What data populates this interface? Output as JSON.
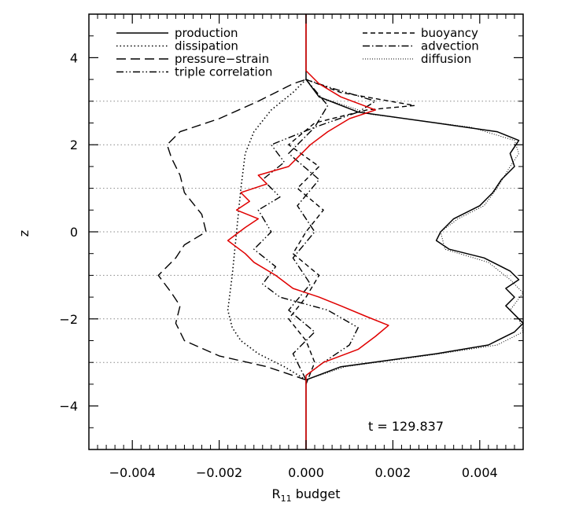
{
  "chart_data": {
    "type": "line",
    "xlabel": "R",
    "xlabel_sub": "11",
    "xlabel_suffix": " budget",
    "ylabel": "z",
    "xlim": [
      -0.005,
      0.005
    ],
    "ylim": [
      -5,
      5
    ],
    "x_ticks": [
      -0.004,
      -0.002,
      0.0,
      0.002,
      0.004
    ],
    "x_tick_labels": [
      "−0.004",
      "−0.002",
      "0.000",
      "0.002",
      "0.004"
    ],
    "y_ticks": [
      -4,
      -2,
      0,
      2,
      4
    ],
    "y_tick_labels": [
      "−4",
      "−2",
      "0",
      "2",
      "4"
    ],
    "reference_lines_z": [
      3,
      2,
      1,
      0,
      -1,
      -2,
      -3
    ],
    "annotation": "t = 129.837",
    "legend": [
      {
        "label": "production",
        "style": "solid",
        "column": "left"
      },
      {
        "label": "dissipation",
        "style": "dotted",
        "column": "left"
      },
      {
        "label": "pressure−strain",
        "style": "longdash",
        "column": "left"
      },
      {
        "label": "triple correlation",
        "style": "dashdotdot",
        "column": "left"
      },
      {
        "label": "buoyancy",
        "style": "dashed",
        "column": "right"
      },
      {
        "label": "advection",
        "style": "dashdot",
        "column": "right"
      },
      {
        "label": "diffusion",
        "style": "thin-dotted",
        "column": "right"
      }
    ],
    "series": [
      {
        "name": "production",
        "style": "solid",
        "color": "#000000",
        "points": [
          [
            0,
            -5
          ],
          [
            0,
            -3.4
          ],
          [
            0.0008,
            -3.1
          ],
          [
            0.003,
            -2.8
          ],
          [
            0.0042,
            -2.6
          ],
          [
            0.0048,
            -2.3
          ],
          [
            0.005,
            -2.1
          ],
          [
            0.0048,
            -1.9
          ],
          [
            0.0046,
            -1.7
          ],
          [
            0.0048,
            -1.5
          ],
          [
            0.0046,
            -1.3
          ],
          [
            0.0049,
            -1.1
          ],
          [
            0.0047,
            -0.9
          ],
          [
            0.0041,
            -0.6
          ],
          [
            0.0033,
            -0.4
          ],
          [
            0.003,
            -0.2
          ],
          [
            0.0031,
            0
          ],
          [
            0.0034,
            0.3
          ],
          [
            0.004,
            0.6
          ],
          [
            0.0043,
            0.9
          ],
          [
            0.0045,
            1.2
          ],
          [
            0.0048,
            1.5
          ],
          [
            0.0047,
            1.8
          ],
          [
            0.0049,
            2.1
          ],
          [
            0.0044,
            2.3
          ],
          [
            0.003,
            2.5
          ],
          [
            0.0012,
            2.75
          ],
          [
            0.0003,
            3.1
          ],
          [
            0,
            3.5
          ],
          [
            0,
            5
          ]
        ]
      },
      {
        "name": "diffusion",
        "style": "thin-dotted",
        "color": "#000000",
        "points": [
          [
            0,
            -5
          ],
          [
            0,
            -3.4
          ],
          [
            0.0009,
            -3.1
          ],
          [
            0.0031,
            -2.8
          ],
          [
            0.0044,
            -2.6
          ],
          [
            0.005,
            -2.3
          ],
          [
            0.0049,
            -2.0
          ],
          [
            0.0047,
            -1.8
          ],
          [
            0.005,
            -1.4
          ],
          [
            0.0047,
            -1.1
          ],
          [
            0.0042,
            -0.7
          ],
          [
            0.0032,
            -0.4
          ],
          [
            0.0031,
            0
          ],
          [
            0.0035,
            0.3
          ],
          [
            0.0041,
            0.6
          ],
          [
            0.0044,
            1
          ],
          [
            0.0047,
            1.5
          ],
          [
            0.0049,
            1.8
          ],
          [
            0.0048,
            2.1
          ],
          [
            0.0038,
            2.4
          ],
          [
            0.0015,
            2.7
          ],
          [
            0.0003,
            3.1
          ],
          [
            0,
            3.5
          ],
          [
            0,
            5
          ]
        ]
      },
      {
        "name": "dissipation",
        "style": "dotted",
        "color": "#000000",
        "points": [
          [
            0,
            -3.4
          ],
          [
            -0.0005,
            -3.1
          ],
          [
            -0.0011,
            -2.8
          ],
          [
            -0.0015,
            -2.5
          ],
          [
            -0.0017,
            -2.2
          ],
          [
            -0.0018,
            -1.8
          ],
          [
            -0.0017,
            -1
          ],
          [
            -0.0016,
            0
          ],
          [
            -0.0015,
            1
          ],
          [
            -0.0014,
            1.8
          ],
          [
            -0.0012,
            2.3
          ],
          [
            -0.0008,
            2.8
          ],
          [
            -0.0003,
            3.2
          ],
          [
            0,
            3.5
          ]
        ]
      },
      {
        "name": "pressure−strain",
        "style": "longdash",
        "color": "#000000",
        "points": [
          [
            0,
            -3.4
          ],
          [
            -0.0009,
            -3.1
          ],
          [
            -0.002,
            -2.85
          ],
          [
            -0.0028,
            -2.5
          ],
          [
            -0.003,
            -2.1
          ],
          [
            -0.0029,
            -1.7
          ],
          [
            -0.0031,
            -1.4
          ],
          [
            -0.0034,
            -1.0
          ],
          [
            -0.003,
            -0.6
          ],
          [
            -0.0028,
            -0.3
          ],
          [
            -0.0023,
            0
          ],
          [
            -0.0024,
            0.4
          ],
          [
            -0.0028,
            0.9
          ],
          [
            -0.0029,
            1.3
          ],
          [
            -0.0031,
            1.7
          ],
          [
            -0.0032,
            2.0
          ],
          [
            -0.0029,
            2.3
          ],
          [
            -0.002,
            2.6
          ],
          [
            -0.0011,
            3.0
          ],
          [
            -0.0003,
            3.4
          ],
          [
            0,
            3.5
          ]
        ]
      },
      {
        "name": "triple correlation",
        "style": "dashdotdot",
        "color": "#000000",
        "points": [
          [
            0,
            -3.3
          ],
          [
            0.0004,
            -3.0
          ],
          [
            0.001,
            -2.6
          ],
          [
            0.0012,
            -2.2
          ],
          [
            0.0005,
            -1.8
          ],
          [
            -0.0006,
            -1.5
          ],
          [
            -0.001,
            -1.2
          ],
          [
            -0.0007,
            -0.8
          ],
          [
            -0.0012,
            -0.4
          ],
          [
            -0.0008,
            0
          ],
          [
            -0.0011,
            0.5
          ],
          [
            -0.0006,
            0.8
          ],
          [
            -0.001,
            1.2
          ],
          [
            -0.0005,
            1.6
          ],
          [
            -0.0008,
            2.0
          ],
          [
            0.0002,
            2.4
          ],
          [
            0.0012,
            2.75
          ],
          [
            0.0016,
            3.0
          ],
          [
            0.0006,
            3.3
          ],
          [
            0,
            3.5
          ]
        ]
      },
      {
        "name": "buoyancy",
        "style": "dashed",
        "color": "#000000",
        "points": [
          [
            0,
            -3.5
          ],
          [
            0.0002,
            -3.0
          ],
          [
            0,
            -2.5
          ],
          [
            -0.0004,
            -2.0
          ],
          [
            0,
            -1.5
          ],
          [
            0.0003,
            -1.0
          ],
          [
            -0.0003,
            -0.5
          ],
          [
            0,
            0
          ],
          [
            0.0004,
            0.5
          ],
          [
            -0.0002,
            1.0
          ],
          [
            0.0003,
            1.5
          ],
          [
            -0.0004,
            2.0
          ],
          [
            0.0002,
            2.5
          ],
          [
            0.0014,
            2.8
          ],
          [
            0.0025,
            2.9
          ],
          [
            0.0008,
            3.2
          ],
          [
            0,
            3.5
          ]
        ]
      },
      {
        "name": "advection",
        "style": "dashdot",
        "color": "#000000",
        "points": [
          [
            0,
            -3.4
          ],
          [
            -0.0003,
            -2.8
          ],
          [
            0.0002,
            -2.3
          ],
          [
            -0.0004,
            -1.8
          ],
          [
            0.0001,
            -1.2
          ],
          [
            -0.0003,
            -0.6
          ],
          [
            0.0002,
            0
          ],
          [
            -0.0002,
            0.6
          ],
          [
            0.0003,
            1.2
          ],
          [
            -0.0004,
            1.8
          ],
          [
            0.0002,
            2.4
          ],
          [
            0.0005,
            2.9
          ],
          [
            0,
            3.5
          ]
        ]
      },
      {
        "name": "total",
        "style": "solid",
        "color": "#e00000",
        "points": [
          [
            0,
            -5
          ],
          [
            0,
            -3.3
          ],
          [
            0.0004,
            -3.0
          ],
          [
            0.0012,
            -2.7
          ],
          [
            0.0016,
            -2.4
          ],
          [
            0.0019,
            -2.15
          ],
          [
            0.0014,
            -1.95
          ],
          [
            0.0008,
            -1.7
          ],
          [
            0.0003,
            -1.5
          ],
          [
            -0.0003,
            -1.3
          ],
          [
            -0.0007,
            -1.0
          ],
          [
            -0.0012,
            -0.7
          ],
          [
            -0.0014,
            -0.5
          ],
          [
            -0.0018,
            -0.2
          ],
          [
            -0.0014,
            0.1
          ],
          [
            -0.0011,
            0.3
          ],
          [
            -0.0016,
            0.5
          ],
          [
            -0.0013,
            0.7
          ],
          [
            -0.0015,
            0.9
          ],
          [
            -0.0009,
            1.1
          ],
          [
            -0.0011,
            1.3
          ],
          [
            -0.0004,
            1.5
          ],
          [
            -0.0002,
            1.7
          ],
          [
            0.0001,
            2.0
          ],
          [
            0.0005,
            2.3
          ],
          [
            0.001,
            2.6
          ],
          [
            0.0016,
            2.8
          ],
          [
            0.0008,
            3.1
          ],
          [
            0.0003,
            3.4
          ],
          [
            0,
            3.7
          ],
          [
            0,
            5
          ]
        ]
      }
    ]
  }
}
